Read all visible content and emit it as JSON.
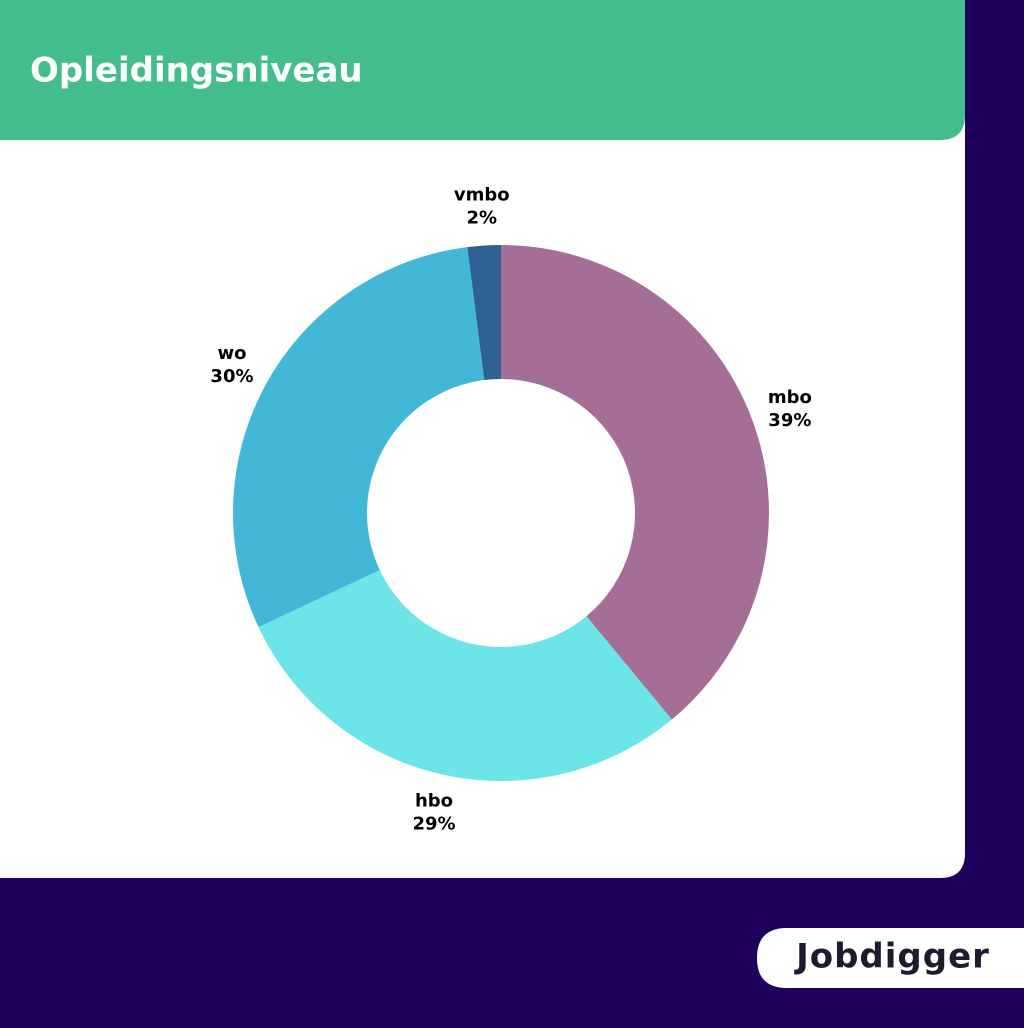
{
  "chart_data": {
    "type": "donut",
    "title": "Opleidingsniveau",
    "categories": [
      "mbo",
      "hbo",
      "wo",
      "vmbo"
    ],
    "values": [
      39,
      29,
      30,
      2
    ],
    "value_labels": [
      "39%",
      "29%",
      "30%",
      "2%"
    ],
    "colors": [
      "#a56e96",
      "#6be5e8",
      "#43b7d8",
      "#2e6096"
    ]
  },
  "brand": "Jobdigger"
}
